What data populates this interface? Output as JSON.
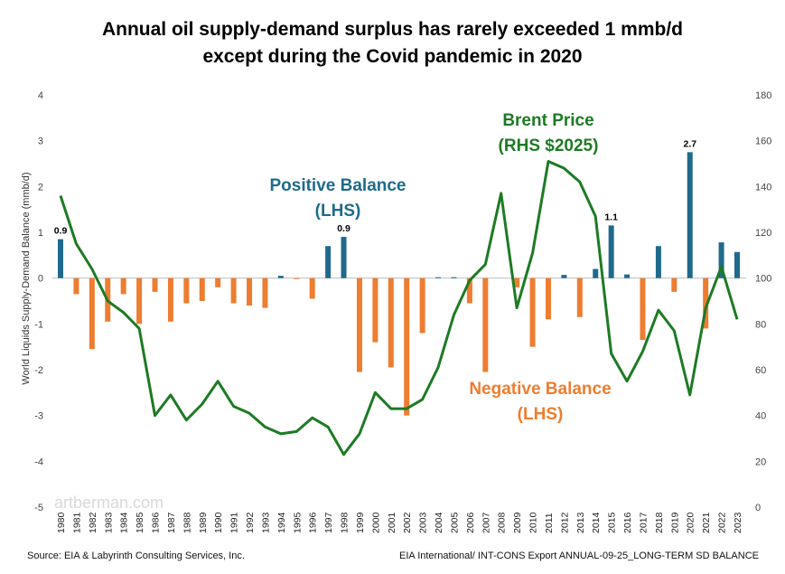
{
  "chart_data": {
    "type": "bar",
    "title_line1": "Annual oil supply-demand surplus has rarely exceeded 1 mmb/d",
    "title_line2": "except during the Covid pandemic in 2020",
    "ylabel": "World Liquids Supply-Demand Balance (mmb/d)",
    "ylim": [
      -5,
      4
    ],
    "y2lim": [
      0,
      180
    ],
    "yticks": [
      "4",
      "3",
      "2",
      "1",
      "0",
      "-1",
      "-2",
      "-3",
      "-4",
      "-5"
    ],
    "y2ticks": [
      "180",
      "160",
      "140",
      "120",
      "100",
      "80",
      "60",
      "40",
      "20",
      "0"
    ],
    "grid": false,
    "categories": [
      "1980",
      "1981",
      "1982",
      "1983",
      "1984",
      "1985",
      "1986",
      "1987",
      "1988",
      "1989",
      "1990",
      "1991",
      "1992",
      "1993",
      "1994",
      "1995",
      "1996",
      "1997",
      "1998",
      "1999",
      "2000",
      "2001",
      "2002",
      "2003",
      "2004",
      "2005",
      "2006",
      "2007",
      "2008",
      "2009",
      "2010",
      "2011",
      "2012",
      "2013",
      "2014",
      "2015",
      "2016",
      "2017",
      "2018",
      "2019",
      "2020",
      "2021",
      "2022",
      "2023"
    ],
    "series": [
      {
        "axis": "left",
        "kind": "bar",
        "values": [
          0.85,
          -0.35,
          -1.55,
          -0.95,
          -0.35,
          -1.0,
          -0.3,
          -0.95,
          -0.55,
          -0.5,
          -0.2,
          -0.55,
          -0.6,
          -0.65,
          0.05,
          -0.02,
          -0.45,
          0.7,
          0.9,
          -2.05,
          -1.4,
          -1.95,
          -3.0,
          -1.2,
          0.02,
          0.02,
          -0.55,
          -2.05,
          0.0,
          -0.2,
          -1.5,
          -0.9,
          0.07,
          -0.85,
          0.2,
          1.15,
          0.08,
          -1.35,
          0.7,
          -0.3,
          2.75,
          -1.1,
          0.78,
          0.57
        ]
      },
      {
        "axis": "right",
        "kind": "line",
        "values": [
          136,
          115,
          104,
          90,
          85,
          78,
          40,
          49,
          38,
          45,
          55,
          44,
          41,
          35,
          32,
          33,
          39,
          35,
          23,
          32,
          50,
          43,
          43,
          47,
          61,
          84,
          99,
          106,
          137,
          87,
          111,
          151,
          148,
          142,
          127,
          67,
          55,
          68,
          86,
          77,
          49,
          87,
          105,
          82
        ]
      }
    ],
    "data_labels": [
      {
        "year": "1980",
        "text": "0.9"
      },
      {
        "year": "1998",
        "text": "0.9"
      },
      {
        "year": "2015",
        "text": "1.1"
      },
      {
        "year": "2020",
        "text": "2.7"
      }
    ],
    "annotations": {
      "positive_line1": "Positive Balance",
      "positive_line2": "(LHS)",
      "brent_line1": "Brent Price",
      "brent_line2": "(RHS $2025)",
      "negative_line1": "Negative Balance",
      "negative_line2": "(LHS)"
    },
    "colors": {
      "positive": "#1f6a8c",
      "negative": "#ed7d31",
      "line": "#1e7a24",
      "positive_text": "#1f6a8c",
      "negative_text": "#ed7d31",
      "brent_text": "#1e7a24"
    }
  },
  "watermark": "artberman.com",
  "footer": {
    "source": "Source:  EIA & Labyrinth Consulting Services, Inc.",
    "credit": "EIA International/ INT-CONS Export ANNUAL-09-25_LONG-TERM SD BALANCE"
  }
}
